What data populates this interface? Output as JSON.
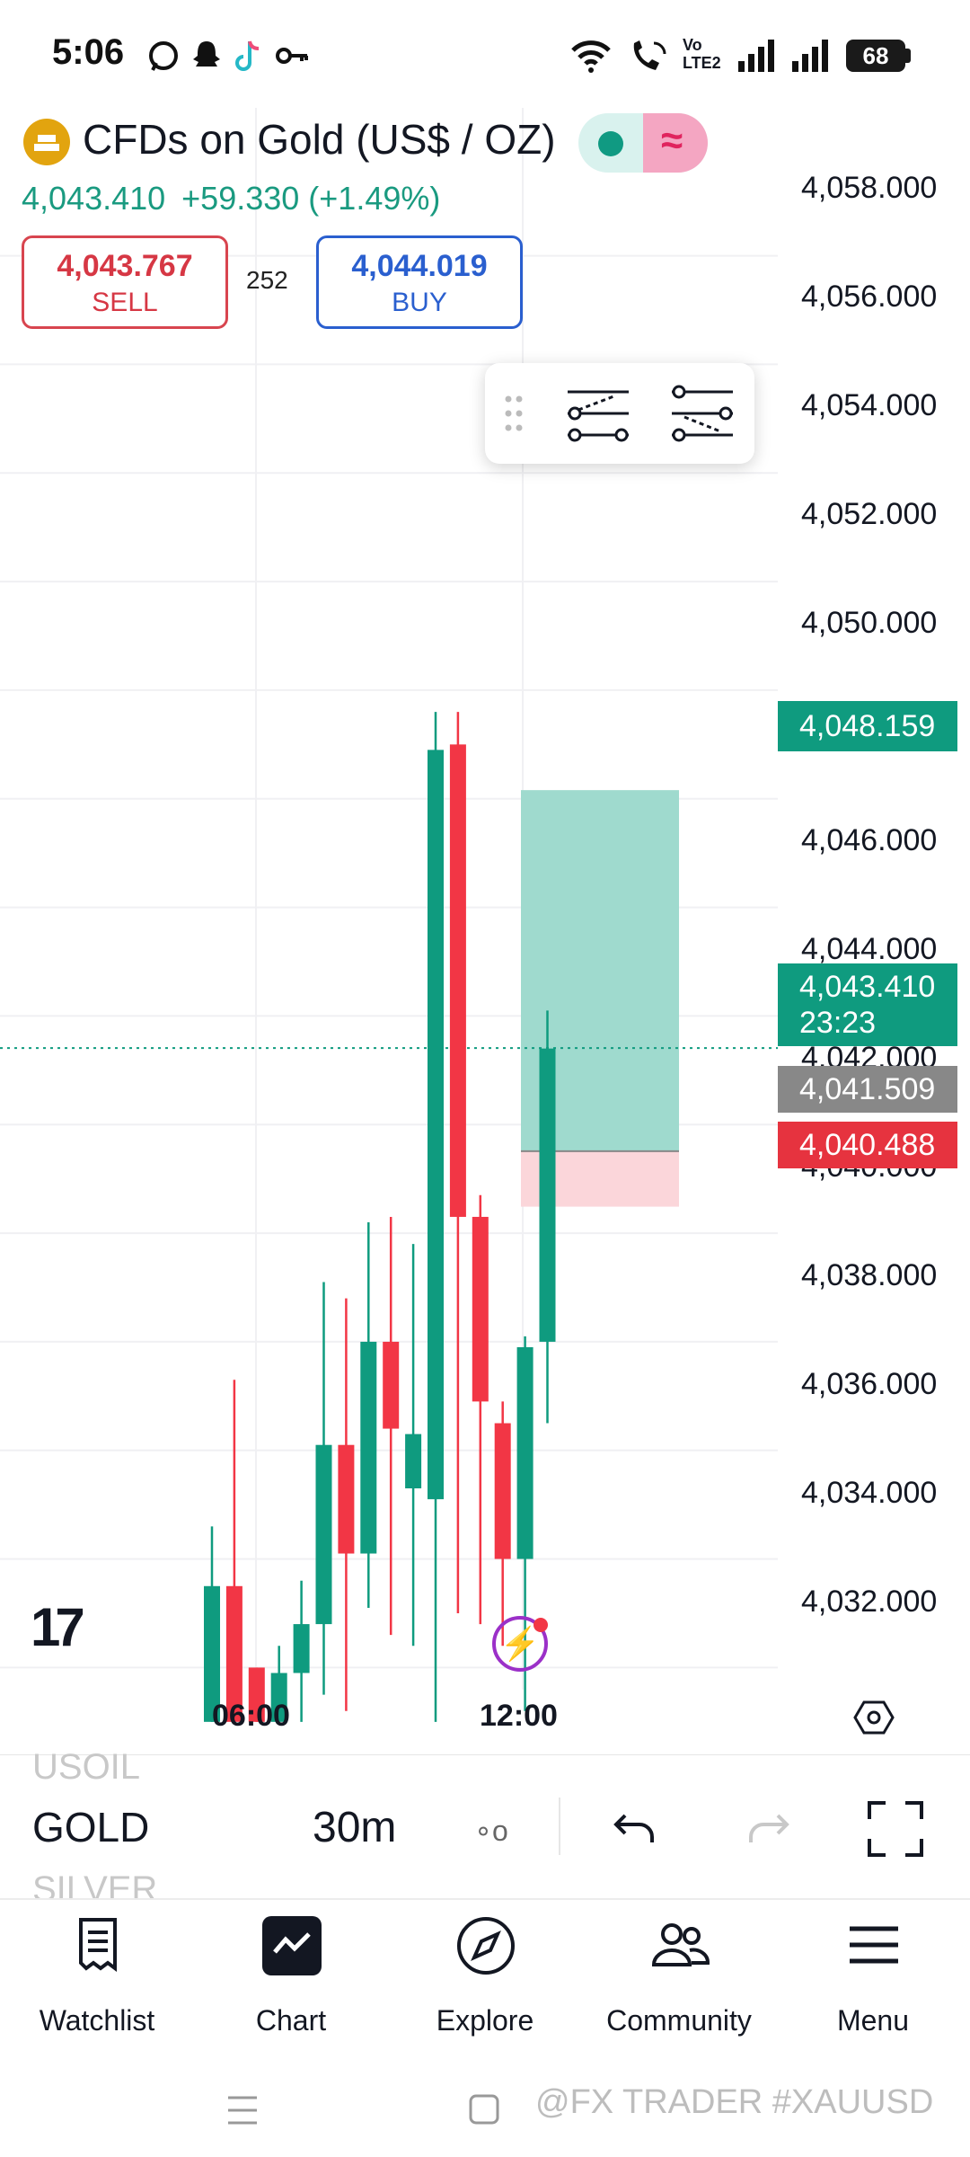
{
  "status_bar": {
    "time": "5:06",
    "battery": "68",
    "icons": [
      "whatsapp-icon",
      "snapchat-icon",
      "tiktok-icon",
      "key-icon",
      "wifi-icon",
      "wifi-call-icon",
      "volte-icon",
      "signal-icon",
      "signal-icon",
      "battery-icon"
    ],
    "volte_text": "Vo LTE2"
  },
  "header": {
    "symbol_title": "CFDs on Gold (US$ / OZ)",
    "last_price": "4,043.410",
    "change": "+59.330 (+1.49%)",
    "sell_price": "4,043.767",
    "sell_label": "SELL",
    "buy_price": "4,044.019",
    "buy_label": "BUY",
    "spread": "252"
  },
  "chart": {
    "price_axis": [
      "4,058.000",
      "4,056.000",
      "4,054.000",
      "4,052.000",
      "4,050.000",
      "4,046.000",
      "4,044.000",
      "4,042.000",
      "4,040.000",
      "4,038.000",
      "4,036.000",
      "4,034.000",
      "4,032.000"
    ],
    "tags": {
      "target": "4,048.159",
      "current_price": "4,043.410",
      "countdown": "23:23",
      "entry": "4,041.509",
      "stop": "4,040.488"
    },
    "time_axis": [
      "06:00",
      "12:00"
    ],
    "logo_text": "17"
  },
  "symbol_bar": {
    "prev_symbol": "USOIL",
    "current_symbol": "GOLD",
    "next_symbol": "SILVER",
    "interval": "30m",
    "indicators_glyph": "∘o"
  },
  "bottom_nav": {
    "items": [
      {
        "label": "Watchlist"
      },
      {
        "label": "Chart"
      },
      {
        "label": "Explore"
      },
      {
        "label": "Community"
      },
      {
        "label": "Menu"
      }
    ]
  },
  "watermark": "@FX TRADER #XAUUSD",
  "chart_data": {
    "type": "candlestick",
    "series": [
      {
        "open": 4031.0,
        "high": 4034.6,
        "low": 4031.0,
        "close": 4033.5
      },
      {
        "open": 4033.5,
        "high": 4037.3,
        "low": 4031.0,
        "close": 4031.0
      },
      {
        "open": 4032.0,
        "high": 4032.0,
        "low": 4031.0,
        "close": 4031.0
      },
      {
        "open": 4031.0,
        "high": 4032.4,
        "low": 4031.0,
        "close": 4031.9
      },
      {
        "open": 4031.9,
        "high": 4033.6,
        "low": 4031.0,
        "close": 4032.8
      },
      {
        "open": 4032.8,
        "high": 4039.1,
        "low": 4031.5,
        "close": 4036.1
      },
      {
        "open": 4036.1,
        "high": 4038.8,
        "low": 4031.2,
        "close": 4034.1
      },
      {
        "open": 4034.1,
        "high": 4040.2,
        "low": 4033.1,
        "close": 4038.0
      },
      {
        "open": 4038.0,
        "high": 4040.3,
        "low": 4032.6,
        "close": 4036.4
      },
      {
        "open": 4035.3,
        "high": 4039.8,
        "low": 4032.4,
        "close": 4036.3
      },
      {
        "open": 4035.1,
        "high": 4049.6,
        "low": 4031.0,
        "close": 4048.9
      },
      {
        "open": 4049.0,
        "high": 4049.6,
        "low": 4033.0,
        "close": 4040.3
      },
      {
        "open": 4040.3,
        "high": 4040.7,
        "low": 4032.8,
        "close": 4036.9
      },
      {
        "open": 4036.5,
        "high": 4036.9,
        "low": 4032.4,
        "close": 4034.0
      },
      {
        "open": 4034.0,
        "high": 4038.1,
        "low": 4031.2,
        "close": 4037.9
      },
      {
        "open": 4038.0,
        "high": 4044.1,
        "low": 4036.5,
        "close": 4043.4
      }
    ],
    "position": {
      "target": 4048.159,
      "entry": 4041.509,
      "stop": 4040.488
    },
    "current_price": 4043.41,
    "ylim": [
      4030.6,
      4059.4
    ],
    "x_ticks": [
      "06:00",
      "12:00"
    ],
    "up_color": "#0f9b7f",
    "down_color": "#f23645"
  },
  "colors": {
    "up": "#0f9b7f",
    "down": "#f23645",
    "sell": "#d63744",
    "buy": "#2a5fcf",
    "profit_zone": "#9ad8cb",
    "loss_zone": "#fbd6da"
  }
}
